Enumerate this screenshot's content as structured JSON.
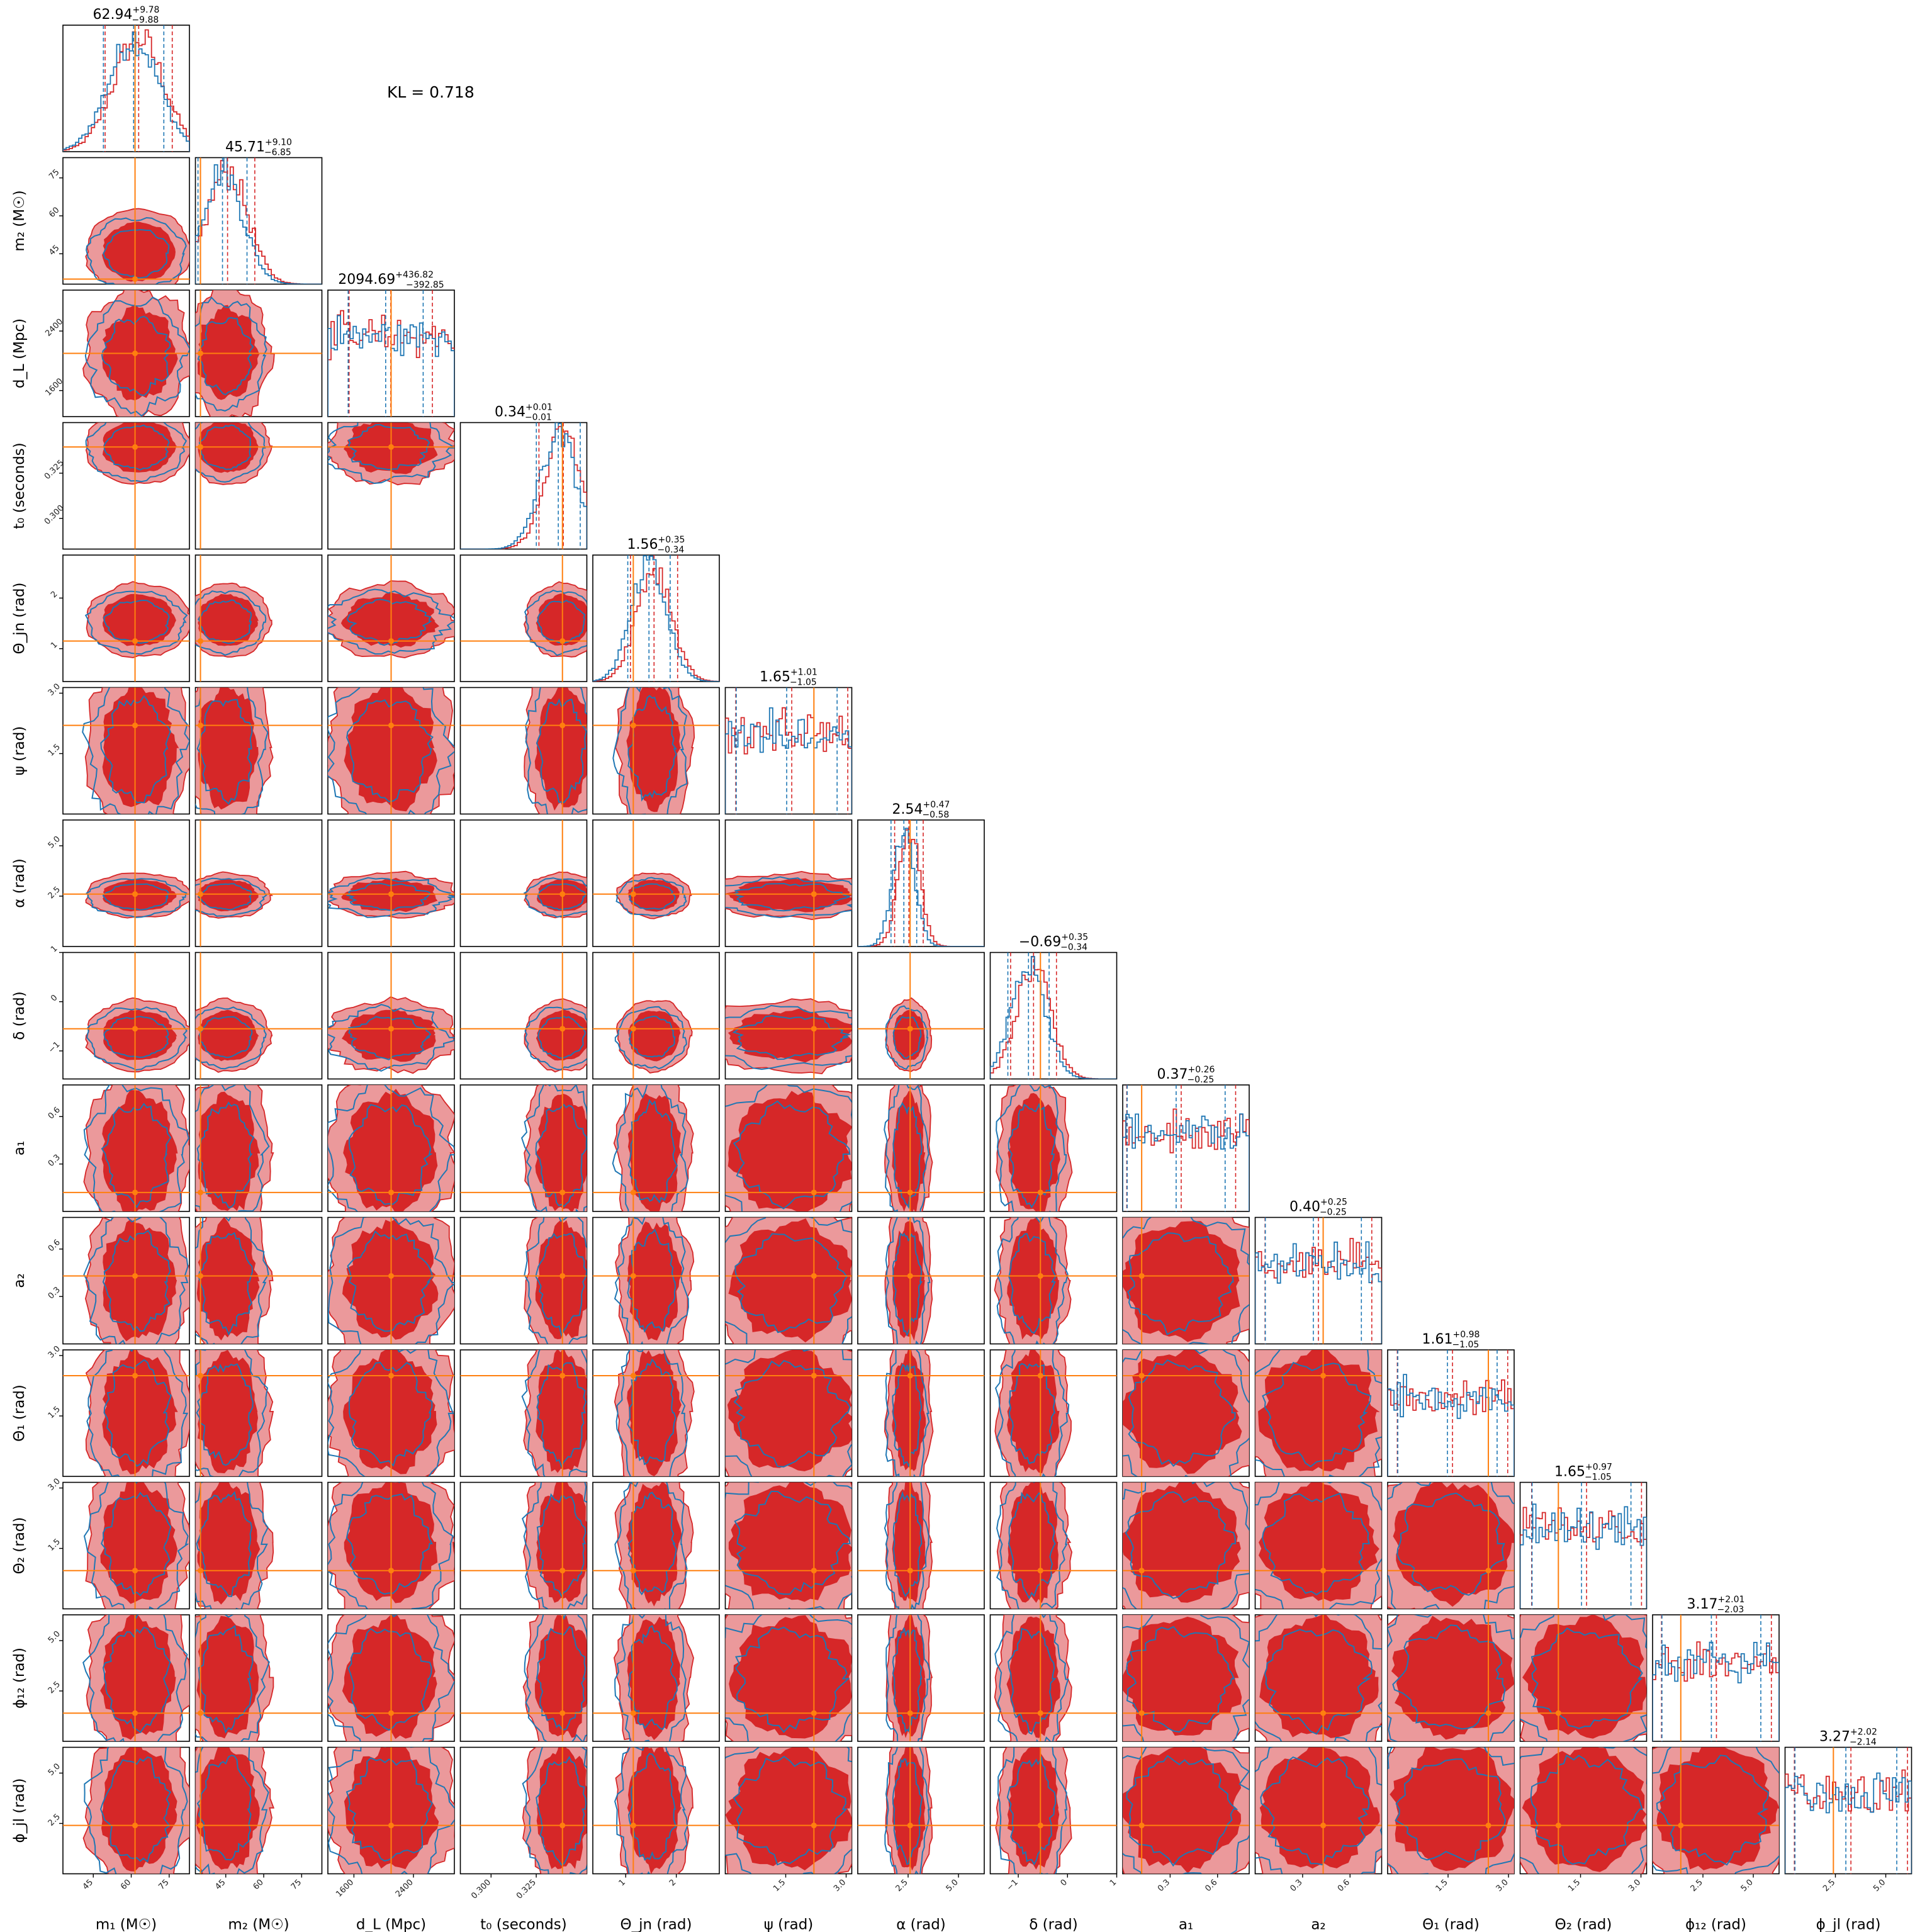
{
  "kl_annotation": "KL = 0.718",
  "colors": {
    "posterior_a": "#d62728",
    "posterior_a_mid": "#e8878a",
    "posterior_b": "#1f77b4",
    "truth": "#ff7f0e"
  },
  "chart_data": {
    "type": "corner",
    "grid": false,
    "parameters": [
      {
        "label": "m₁ (M☉)",
        "title_value": "62.94",
        "err_plus": "+9.78",
        "err_minus": "−9.88",
        "range": [
          33,
          83
        ],
        "ticks": [
          "45",
          "60",
          "75"
        ],
        "truth": 61.5
      },
      {
        "label": "m₂ (M☉)",
        "title_value": "45.71",
        "err_plus": "+9.10",
        "err_minus": "−6.85",
        "range": [
          33,
          83
        ],
        "ticks": [
          "45",
          "60",
          "75"
        ],
        "truth": 35.0
      },
      {
        "label": "d_L (Mpc)",
        "title_value": "2094.69",
        "err_plus": "+436.82",
        "err_minus": "−392.85",
        "range": [
          1250,
          2950
        ],
        "ticks": [
          "1600",
          "2400"
        ],
        "truth": 2100
      },
      {
        "label": "t₀ (seconds)",
        "title_value": "0.34",
        "err_plus": "+0.01",
        "err_minus": "−0.01",
        "range": [
          0.283,
          0.353
        ],
        "ticks": [
          "0.300",
          "0.325"
        ],
        "truth": 0.3395
      },
      {
        "label": "Θ_jn (rad)",
        "title_value": "1.56",
        "err_plus": "+0.35",
        "err_minus": "−0.34",
        "range": [
          0.35,
          2.85
        ],
        "ticks": [
          "1",
          "2"
        ],
        "truth": 1.15
      },
      {
        "label": "ψ (rad)",
        "title_value": "1.65",
        "err_plus": "+1.01",
        "err_minus": "−1.05",
        "range": [
          0,
          3.14
        ],
        "ticks": [
          "1.5",
          "3.0"
        ],
        "truth": 2.2
      },
      {
        "label": "α (rad)",
        "title_value": "2.54",
        "err_plus": "+0.47",
        "err_minus": "−0.58",
        "range": [
          0,
          6.28
        ],
        "ticks": [
          "2.5",
          "5.0"
        ],
        "truth": 2.6
      },
      {
        "label": "δ (rad)",
        "title_value": "−0.69",
        "err_plus": "+0.35",
        "err_minus": "−0.34",
        "range": [
          -1.57,
          1.0
        ],
        "ticks": [
          "−1",
          "0",
          "1"
        ],
        "truth": -0.55
      },
      {
        "label": "a₁",
        "title_value": "0.37",
        "err_plus": "+0.26",
        "err_minus": "−0.25",
        "range": [
          0,
          0.8
        ],
        "ticks": [
          "0.3",
          "0.6"
        ],
        "truth": 0.12
      },
      {
        "label": "a₂",
        "title_value": "0.40",
        "err_plus": "+0.25",
        "err_minus": "−0.25",
        "range": [
          0,
          0.8
        ],
        "ticks": [
          "0.3",
          "0.6"
        ],
        "truth": 0.43
      },
      {
        "label": "Θ₁ (rad)",
        "title_value": "1.61",
        "err_plus": "+0.98",
        "err_minus": "−1.05",
        "range": [
          0,
          3.14
        ],
        "ticks": [
          "1.5",
          "3.0"
        ],
        "truth": 2.5
      },
      {
        "label": "Θ₂ (rad)",
        "title_value": "1.65",
        "err_plus": "+0.97",
        "err_minus": "−1.05",
        "range": [
          0,
          3.14
        ],
        "ticks": [
          "1.5",
          "3.0"
        ],
        "truth": 0.95
      },
      {
        "label": "ϕ₁₂ (rad)",
        "title_value": "3.17",
        "err_plus": "+2.01",
        "err_minus": "−2.03",
        "range": [
          0,
          6.28
        ],
        "ticks": [
          "2.5",
          "5.0"
        ],
        "truth": 1.4
      },
      {
        "label": "ϕ_jl (rad)",
        "title_value": "3.27",
        "err_plus": "+2.02",
        "err_minus": "−2.14",
        "range": [
          0,
          6.28
        ],
        "ticks": [
          "2.5",
          "5.0"
        ],
        "truth": 2.4
      }
    ]
  }
}
